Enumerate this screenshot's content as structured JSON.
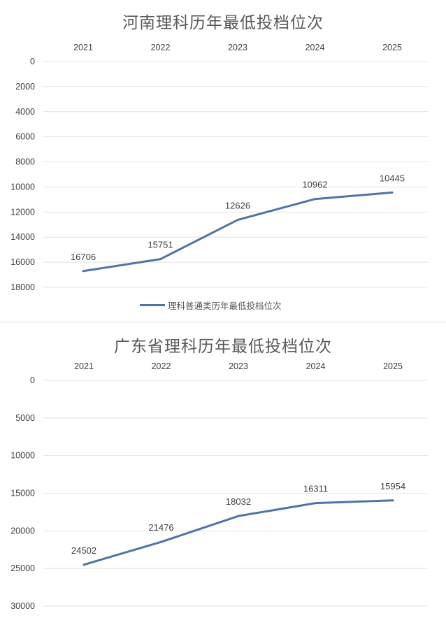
{
  "chart_data": [
    {
      "type": "line",
      "title": "河南理科历年最低投档位次",
      "categories": [
        "2021",
        "2022",
        "2023",
        "2024",
        "2025"
      ],
      "series": [
        {
          "name": "理科普通类历年最低投档位次",
          "values": [
            16706,
            15751,
            12626,
            10962,
            10445
          ],
          "color": "#4f74a8"
        }
      ],
      "y_ticks": [
        "0",
        "2000",
        "4000",
        "6000",
        "8000",
        "10000",
        "12000",
        "14000",
        "16000",
        "18000"
      ],
      "ylim": [
        0,
        18000
      ],
      "y_reversed": true,
      "x_axis_position": "top",
      "grid": true,
      "legend": "bottom"
    },
    {
      "type": "line",
      "title": "广东省理科历年最低投档位次",
      "categories": [
        "2021",
        "2022",
        "2023",
        "2024",
        "2025"
      ],
      "series": [
        {
          "values": [
            24502,
            21476,
            18032,
            16311,
            15954
          ],
          "color": "#4f74a8"
        }
      ],
      "y_ticks": [
        "0",
        "5000",
        "10000",
        "15000",
        "20000",
        "25000",
        "30000"
      ],
      "ylim": [
        0,
        30000
      ],
      "y_reversed": true,
      "x_axis_position": "top",
      "grid": true
    }
  ]
}
